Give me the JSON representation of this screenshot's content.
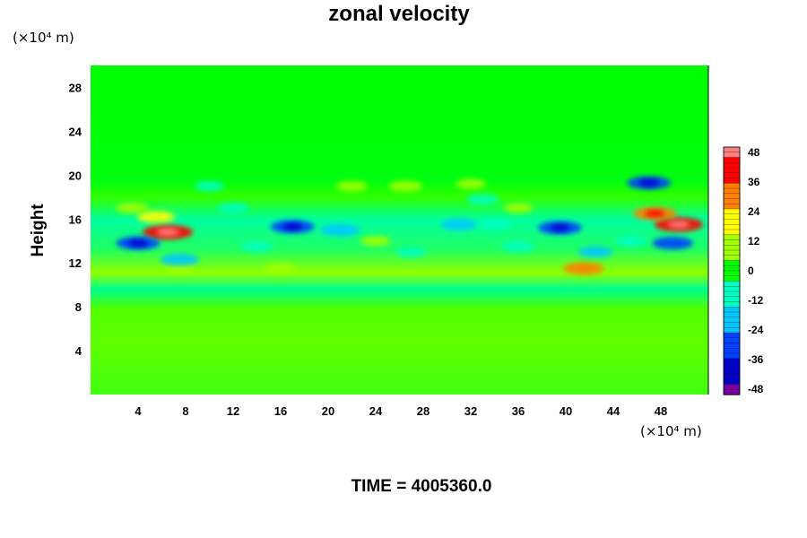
{
  "chart_data": {
    "type": "heatmap",
    "title": "zonal velocity",
    "ylabel": "Height",
    "xlabel": "",
    "x_unit": "(×10⁴ m)",
    "y_unit": "(×10⁴ m)",
    "xlim": [
      0,
      52
    ],
    "ylim": [
      0,
      30
    ],
    "x_ticks": [
      4,
      8,
      12,
      16,
      20,
      24,
      28,
      32,
      36,
      40,
      44,
      48
    ],
    "y_ticks": [
      4,
      8,
      12,
      16,
      20,
      24,
      28
    ],
    "colorbar": {
      "ticks": [
        48,
        36,
        24,
        12,
        0,
        -12,
        -24,
        -36,
        -48
      ],
      "range": [
        -48,
        48
      ],
      "colormap": [
        "#7a00a0",
        "#0000c8",
        "#0040ff",
        "#00c8ff",
        "#00ffc0",
        "#00ff00",
        "#a0ff00",
        "#ffff00",
        "#ff8000",
        "#ff0000",
        "#ff8080"
      ]
    },
    "footer": "TIME = 4005360.0",
    "features": [
      {
        "x": 6.5,
        "y": 14.8,
        "value": 40
      },
      {
        "x": 5.5,
        "y": 16.2,
        "value": 20
      },
      {
        "x": 49.5,
        "y": 15.5,
        "value": 38
      },
      {
        "x": 47.5,
        "y": 16.5,
        "value": 30
      },
      {
        "x": 41.5,
        "y": 11.5,
        "value": 25
      },
      {
        "x": 26.5,
        "y": 19.0,
        "value": 14
      },
      {
        "x": 22.0,
        "y": 19.0,
        "value": 10
      },
      {
        "x": 32.0,
        "y": 19.2,
        "value": 8
      },
      {
        "x": 16.0,
        "y": 11.5,
        "value": 10
      },
      {
        "x": 7.5,
        "y": 11.5,
        "value": 8
      },
      {
        "x": 3.5,
        "y": 17.0,
        "value": 12
      },
      {
        "x": 17.0,
        "y": 15.3,
        "value": -30
      },
      {
        "x": 21.0,
        "y": 15.0,
        "value": -24
      },
      {
        "x": 4.0,
        "y": 13.8,
        "value": -30
      },
      {
        "x": 7.5,
        "y": 12.3,
        "value": -22
      },
      {
        "x": 39.5,
        "y": 15.2,
        "value": -30
      },
      {
        "x": 47.0,
        "y": 19.3,
        "value": -30
      },
      {
        "x": 49.0,
        "y": 13.8,
        "value": -25
      },
      {
        "x": 31.0,
        "y": 15.5,
        "value": -18
      },
      {
        "x": 34.0,
        "y": 15.5,
        "value": -14
      },
      {
        "x": 42.5,
        "y": 13.0,
        "value": -15
      },
      {
        "x": 33.0,
        "y": 17.8,
        "value": -12
      },
      {
        "x": 12.0,
        "y": 17.0,
        "value": -10
      },
      {
        "x": 14.0,
        "y": 13.5,
        "value": -12
      },
      {
        "x": 27.0,
        "y": 13.0,
        "value": -10
      },
      {
        "x": 36.0,
        "y": 13.5,
        "value": -14
      },
      {
        "x": 45.5,
        "y": 14.0,
        "value": -12
      },
      {
        "x": 10.0,
        "y": 19.0,
        "value": -8
      },
      {
        "x": 36.0,
        "y": 17.0,
        "value": 6
      },
      {
        "x": 24.0,
        "y": 14.0,
        "value": 8
      }
    ]
  }
}
